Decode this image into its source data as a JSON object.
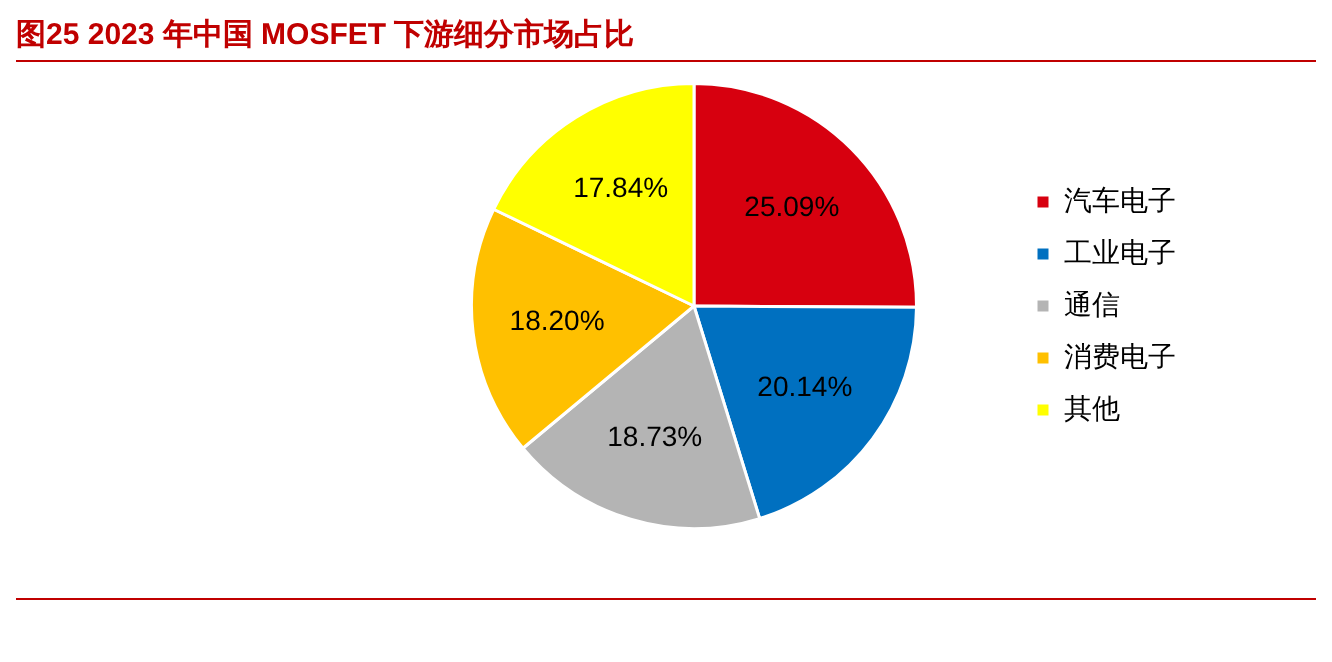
{
  "chart_data": {
    "type": "pie",
    "title": "图25  2023 年中国 MOSFET 下游细分市场占比",
    "categories": [
      "汽车电子",
      "工业电子",
      "通信",
      "消费电子",
      "其他"
    ],
    "values": [
      25.09,
      20.14,
      18.73,
      18.2,
      17.84
    ],
    "colors": [
      "#d7000f",
      "#0070c0",
      "#b4b4b4",
      "#ffc000",
      "#ffff00"
    ],
    "value_labels": [
      "25.09%",
      "20.14%",
      "18.73%",
      "18.20%",
      "17.84%"
    ],
    "legend": "right"
  }
}
